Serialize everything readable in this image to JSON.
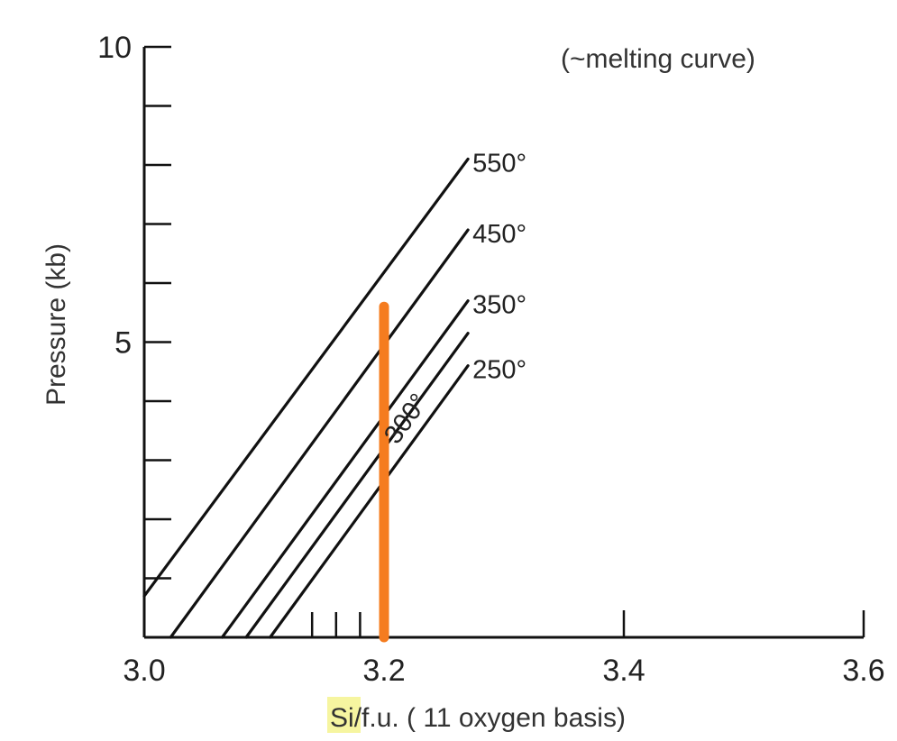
{
  "chart_data": {
    "type": "line",
    "title": "",
    "annotation": "(~melting curve)",
    "xlabel_highlight": "Si",
    "xlabel_rest": "/f.u. ( 11 oxygen basis)",
    "ylabel": "Pressure (kb)",
    "xlim": [
      3.0,
      3.6
    ],
    "ylim": [
      0,
      10
    ],
    "x_ticks": [
      {
        "value": 3.0,
        "label": "3.0"
      },
      {
        "value": 3.2,
        "label": "3.2"
      },
      {
        "value": 3.4,
        "label": "3.4"
      },
      {
        "value": 3.6,
        "label": "3.6"
      }
    ],
    "x_minor_ticks": [
      3.14,
      3.16,
      3.18
    ],
    "y_ticks": [
      {
        "value": 0,
        "label": ""
      },
      {
        "value": 1,
        "label": ""
      },
      {
        "value": 2,
        "label": ""
      },
      {
        "value": 3,
        "label": ""
      },
      {
        "value": 4,
        "label": ""
      },
      {
        "value": 5,
        "label": "5"
      },
      {
        "value": 6,
        "label": ""
      },
      {
        "value": 7,
        "label": ""
      },
      {
        "value": 8,
        "label": ""
      },
      {
        "value": 9,
        "label": ""
      },
      {
        "value": 10,
        "label": "10"
      }
    ],
    "grid": false,
    "series": [
      {
        "name": "550°",
        "x": [
          3.0,
          3.27
        ],
        "y": [
          0.7,
          8.1
        ]
      },
      {
        "name": "450°",
        "x": [
          3.022,
          3.27
        ],
        "y": [
          0.0,
          6.9
        ]
      },
      {
        "name": "350°",
        "x": [
          3.065,
          3.27
        ],
        "y": [
          0.0,
          5.7
        ]
      },
      {
        "name": "300°",
        "x": [
          3.085,
          3.27
        ],
        "y": [
          0.0,
          5.15
        ]
      },
      {
        "name": "250°",
        "x": [
          3.105,
          3.27
        ],
        "y": [
          0.0,
          4.6
        ]
      }
    ],
    "vertical_marker": {
      "x": 3.2,
      "y": [
        0.0,
        5.6
      ],
      "color": "#f57c1f"
    },
    "line_color": "#111111",
    "highlight_color": "#f6f5a0"
  }
}
